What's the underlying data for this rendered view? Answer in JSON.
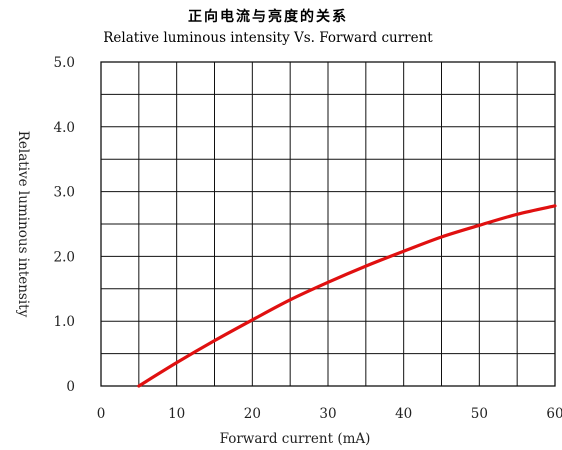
{
  "chart_data": {
    "type": "line",
    "title": "正向电流与亮度的关系",
    "subtitle": "Relative luminous intensity Vs. Forward current",
    "xlabel": "Forward current (mA)",
    "ylabel": "Relative luminous intensity",
    "xlim": [
      0,
      60
    ],
    "ylim": [
      0,
      5
    ],
    "x_ticks": [
      "0",
      "10",
      "20",
      "30",
      "40",
      "50",
      "60"
    ],
    "y_ticks": [
      "0",
      "1.0",
      "2.0",
      "3.0",
      "4.0",
      "5.0"
    ],
    "x_minor_step": 5,
    "y_minor_step": 0.5,
    "grid": true,
    "series_color": "#e01010",
    "series": [
      {
        "x": [
          5,
          10,
          15,
          20,
          25,
          30,
          35,
          40,
          45,
          50,
          55,
          60
        ],
        "y": [
          0.0,
          0.36,
          0.7,
          1.02,
          1.33,
          1.6,
          1.85,
          2.08,
          2.3,
          2.48,
          2.65,
          2.78
        ]
      }
    ]
  }
}
